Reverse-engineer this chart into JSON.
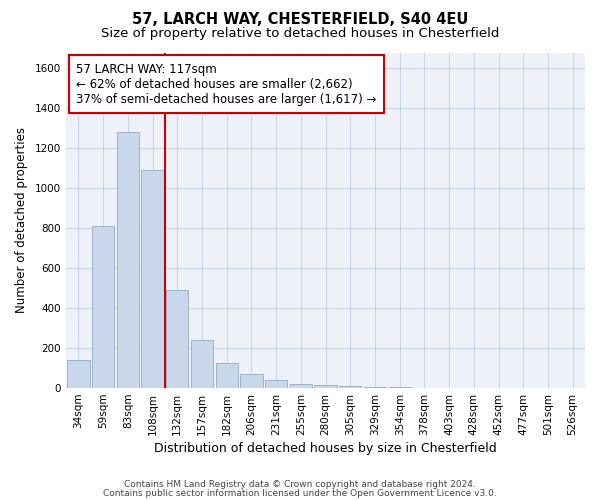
{
  "title1": "57, LARCH WAY, CHESTERFIELD, S40 4EU",
  "title2": "Size of property relative to detached houses in Chesterfield",
  "xlabel": "Distribution of detached houses by size in Chesterfield",
  "ylabel": "Number of detached properties",
  "categories": [
    "34sqm",
    "59sqm",
    "83sqm",
    "108sqm",
    "132sqm",
    "157sqm",
    "182sqm",
    "206sqm",
    "231sqm",
    "255sqm",
    "280sqm",
    "305sqm",
    "329sqm",
    "354sqm",
    "378sqm",
    "403sqm",
    "428sqm",
    "452sqm",
    "477sqm",
    "501sqm",
    "526sqm"
  ],
  "values": [
    140,
    810,
    1280,
    1090,
    490,
    240,
    125,
    68,
    42,
    22,
    15,
    8,
    5,
    3,
    2,
    1,
    1,
    1,
    1,
    1,
    1
  ],
  "bar_color": "#c8d8ea",
  "bar_edge_color": "#9ab4cc",
  "vline_color": "#cc0000",
  "annotation_line1": "57 LARCH WAY: 117sqm",
  "annotation_line2": "← 62% of detached houses are smaller (2,662)",
  "annotation_line3": "37% of semi-detached houses are larger (1,617) →",
  "annotation_box_color": "#ffffff",
  "annotation_box_edge": "#cc0000",
  "ylim": [
    0,
    1680
  ],
  "yticks": [
    0,
    200,
    400,
    600,
    800,
    1000,
    1200,
    1400,
    1600
  ],
  "grid_color": "#c8d4e8",
  "bg_color": "#eef2f8",
  "footer1": "Contains HM Land Registry data © Crown copyright and database right 2024.",
  "footer2": "Contains public sector information licensed under the Open Government Licence v3.0.",
  "title1_fontsize": 10.5,
  "title2_fontsize": 9.5,
  "xlabel_fontsize": 9,
  "ylabel_fontsize": 8.5,
  "tick_fontsize": 7.5,
  "footer_fontsize": 6.5,
  "annot_fontsize": 8.5
}
